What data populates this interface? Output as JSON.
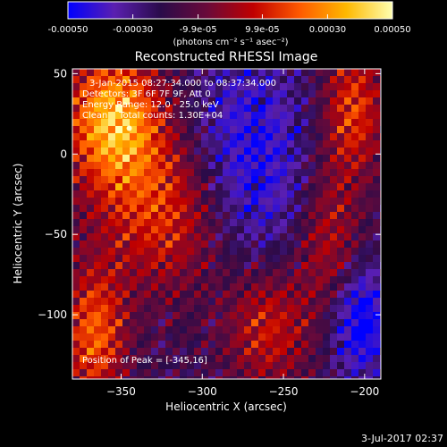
{
  "chart_data": {
    "type": "heatmap",
    "title": "Reconstructed RHESSI Image",
    "xlabel": "Heliocentric X (arcsec)",
    "ylabel": "Heliocentric Y (arcsec)",
    "xlim": [
      -380,
      -190
    ],
    "ylim": [
      -140,
      53
    ],
    "xticks": [
      -350,
      -300,
      -250,
      -200
    ],
    "yticks": [
      50,
      0,
      -50,
      -100
    ],
    "annotations": [
      "3-Jan-2015 08:27:34.000 to 08:37:34.000",
      "Detectors: 3F 6F 7F 9F, Att 0",
      "Energy Range: 12.0 - 25.0 keV",
      "Clean    Total counts: 1.30E+04"
    ],
    "peak_text": "Position of Peak = [-345,16]",
    "peak_position": [
      -345,
      16
    ],
    "colorbar": {
      "range": [
        -0.0005,
        0.0005
      ],
      "tick_labels": [
        "-0.00050",
        "-0.00030",
        "-9.9e-05",
        "9.9e-05",
        "0.00030",
        "0.00050"
      ],
      "tick_values": [
        -0.0005,
        -0.0003,
        -9.9e-05,
        9.9e-05,
        0.0003,
        0.0005
      ],
      "unit_label": "(photons cm⁻² s⁻¹ asec⁻²)",
      "colors": [
        "#0000ff",
        "#5a1fb0",
        "#2a0b4a",
        "#6a0a3a",
        "#c00000",
        "#ff5a00",
        "#ffb800",
        "#ffffb0"
      ]
    }
  },
  "footer": {
    "date": "3-Jul-2017 02:37"
  }
}
